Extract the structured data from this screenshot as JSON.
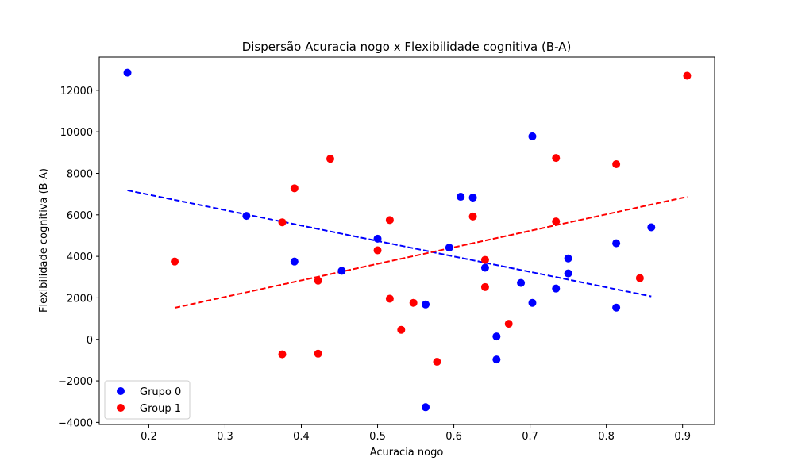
{
  "chart_data": {
    "type": "scatter",
    "title": "Dispersão Acuracia nogo x Flexibilidade cognitiva (B-A)",
    "xlabel": "Acuracia nogo",
    "ylabel": "Flexibilidade cognitiva (B-A)",
    "xlim": [
      0.135,
      0.942
    ],
    "ylim": [
      -4100,
      13600
    ],
    "xticks": [
      0.2,
      0.3,
      0.4,
      0.5,
      0.6,
      0.7,
      0.8,
      0.9
    ],
    "xtick_labels": [
      "0.2",
      "0.3",
      "0.4",
      "0.5",
      "0.6",
      "0.7",
      "0.8",
      "0.9"
    ],
    "yticks": [
      -4000,
      -2000,
      0,
      2000,
      4000,
      6000,
      8000,
      10000,
      12000
    ],
    "ytick_labels": [
      "−4000",
      "−2000",
      "0",
      "2000",
      "4000",
      "6000",
      "8000",
      "10000",
      "12000"
    ],
    "grid": false,
    "legend_position": "lower-left",
    "series": [
      {
        "name": "Grupo 0",
        "color": "#0000ff",
        "points": [
          [
            0.172,
            12850
          ],
          [
            0.328,
            5950
          ],
          [
            0.391,
            3750
          ],
          [
            0.453,
            3300
          ],
          [
            0.5,
            4850
          ],
          [
            0.563,
            1680
          ],
          [
            0.563,
            -3270
          ],
          [
            0.594,
            4420
          ],
          [
            0.609,
            6870
          ],
          [
            0.625,
            6830
          ],
          [
            0.641,
            3450
          ],
          [
            0.656,
            140
          ],
          [
            0.656,
            -970
          ],
          [
            0.688,
            2720
          ],
          [
            0.703,
            9780
          ],
          [
            0.703,
            1760
          ],
          [
            0.734,
            2450
          ],
          [
            0.75,
            3900
          ],
          [
            0.75,
            3180
          ],
          [
            0.813,
            4630
          ],
          [
            0.813,
            1530
          ],
          [
            0.859,
            5400
          ]
        ],
        "fit": {
          "x": [
            0.172,
            0.859
          ],
          "y": [
            7180,
            2070
          ]
        }
      },
      {
        "name": "Group 1",
        "color": "#ff0000",
        "points": [
          [
            0.234,
            3750
          ],
          [
            0.375,
            5640
          ],
          [
            0.375,
            -720
          ],
          [
            0.391,
            7280
          ],
          [
            0.422,
            2830
          ],
          [
            0.422,
            -690
          ],
          [
            0.438,
            8700
          ],
          [
            0.5,
            4290
          ],
          [
            0.516,
            5750
          ],
          [
            0.516,
            1960
          ],
          [
            0.531,
            460
          ],
          [
            0.547,
            1760
          ],
          [
            0.578,
            -1080
          ],
          [
            0.625,
            5920
          ],
          [
            0.641,
            3830
          ],
          [
            0.641,
            2520
          ],
          [
            0.672,
            750
          ],
          [
            0.734,
            8740
          ],
          [
            0.734,
            5680
          ],
          [
            0.813,
            8440
          ],
          [
            0.844,
            2950
          ],
          [
            0.906,
            12700
          ]
        ],
        "fit": {
          "x": [
            0.234,
            0.906
          ],
          "y": [
            1520,
            6870
          ]
        }
      }
    ]
  }
}
